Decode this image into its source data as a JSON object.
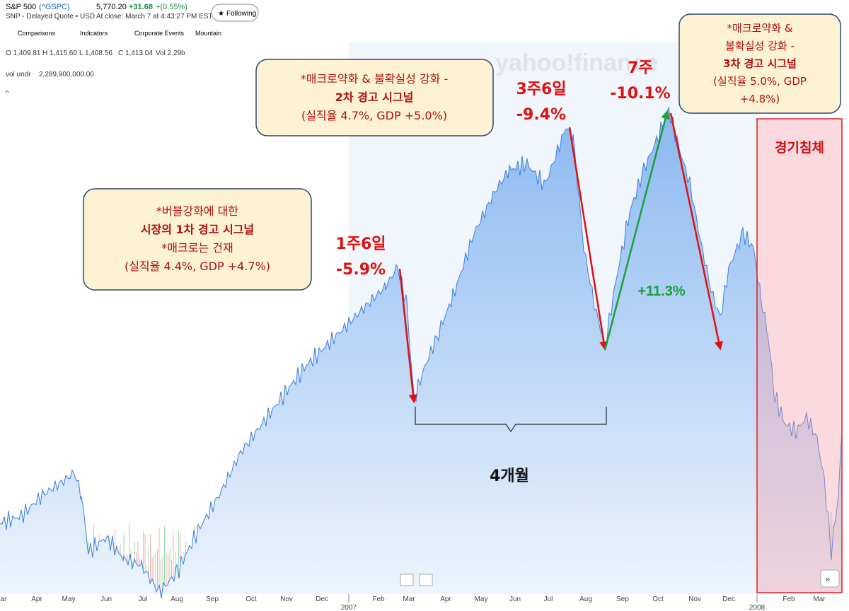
{
  "header": {
    "name": "S&P 500",
    "symbol": "(^GSPC)",
    "subtitle": "SNP - Delayed Quote • USD",
    "price": "5,770.20",
    "change": "+31.68",
    "change_pct": "+(0.55%)",
    "close_time": "At close: March 7 at 4:43:27 PM EST",
    "follow_button": "Following"
  },
  "toolbar": [
    "Comparisons",
    "Indicators",
    "Corporate Events",
    "Mountain"
  ],
  "ohlc": [
    "O 1,409.81",
    "H 1,415.60",
    "L 1,408.56",
    "C 1,413.04",
    "Vol 2.29b"
  ],
  "volume": {
    "label": "vol undr",
    "value": "2,289,900,000.00"
  },
  "watermark": "yahoo!finance",
  "annotations": {
    "box1": [
      "*버블강화에 대한",
      "시장의 1차 경고 시그널",
      "*매크로는 건재",
      "(실직율 4.4%, GDP +4.7%)"
    ],
    "box2": [
      "*매크로약화 & 불확실성 강화 -",
      "2차 경고 시그널",
      "(실직율 4.7%, GDP +5.0%)"
    ],
    "box3": [
      "*매크로약화 &",
      "불확실성 강화 -",
      "3차 경고 시그널",
      "(실직율 5.0%, GDP",
      "+4.8%)"
    ],
    "drop1": [
      "1주6일",
      "-5.9%"
    ],
    "drop2": [
      "3주6일",
      "-9.4%"
    ],
    "drop3": [
      "7주",
      "-10.1%"
    ],
    "rise": "+11.3%",
    "span": "4개월",
    "recession": "경기침체"
  },
  "x_axis": {
    "months": [
      "ar",
      "Apr",
      "May",
      "Jun",
      "Jul",
      "Aug",
      "Sep",
      "Oct",
      "Nov",
      "Dec",
      "Feb",
      "Mar",
      "Apr",
      "May",
      "Jun",
      "Jul",
      "Aug",
      "Sep",
      "Oct",
      "Nov",
      "Dec",
      "Feb",
      "Mar"
    ],
    "years": [
      "2007",
      "2008"
    ]
  }
}
